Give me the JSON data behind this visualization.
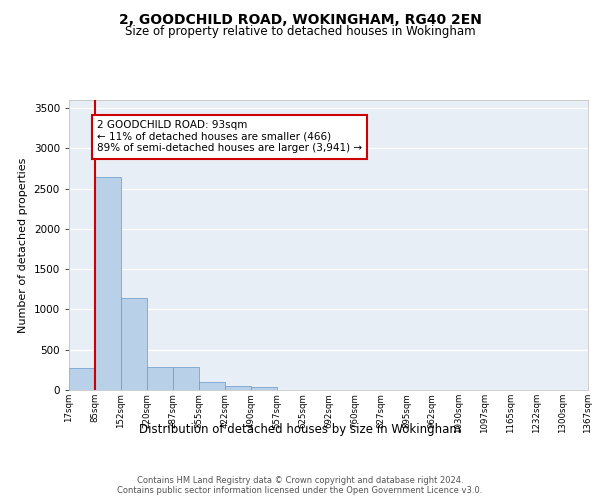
{
  "title": "2, GOODCHILD ROAD, WOKINGHAM, RG40 2EN",
  "subtitle": "Size of property relative to detached houses in Wokingham",
  "xlabel": "Distribution of detached houses by size in Wokingham",
  "ylabel": "Number of detached properties",
  "bar_color": "#b8d0e8",
  "bar_edge_color": "#6699cc",
  "background_color": "#e8eef5",
  "grid_color": "#ffffff",
  "annotation_text": "2 GOODCHILD ROAD: 93sqm\n← 11% of detached houses are smaller (466)\n89% of semi-detached houses are larger (3,941) →",
  "vline_color": "#cc0000",
  "annotation_box_edgecolor": "#cc0000",
  "bin_edges": [
    17,
    85,
    152,
    220,
    287,
    355,
    422,
    490,
    557,
    625,
    692,
    760,
    827,
    895,
    962,
    1030,
    1097,
    1165,
    1232,
    1300,
    1367
  ],
  "bin_labels": [
    "17sqm",
    "85sqm",
    "152sqm",
    "220sqm",
    "287sqm",
    "355sqm",
    "422sqm",
    "490sqm",
    "557sqm",
    "625sqm",
    "692sqm",
    "760sqm",
    "827sqm",
    "895sqm",
    "962sqm",
    "1030sqm",
    "1097sqm",
    "1165sqm",
    "1232sqm",
    "1300sqm",
    "1367sqm"
  ],
  "bar_heights": [
    270,
    2650,
    1140,
    285,
    285,
    95,
    50,
    35,
    0,
    0,
    0,
    0,
    0,
    0,
    0,
    0,
    0,
    0,
    0,
    0
  ],
  "vline_x_bin_index": 1,
  "vline_x": 85,
  "ylim": [
    0,
    3600
  ],
  "yticks": [
    0,
    500,
    1000,
    1500,
    2000,
    2500,
    3000,
    3500
  ],
  "footer_line1": "Contains HM Land Registry data © Crown copyright and database right 2024.",
  "footer_line2": "Contains public sector information licensed under the Open Government Licence v3.0."
}
